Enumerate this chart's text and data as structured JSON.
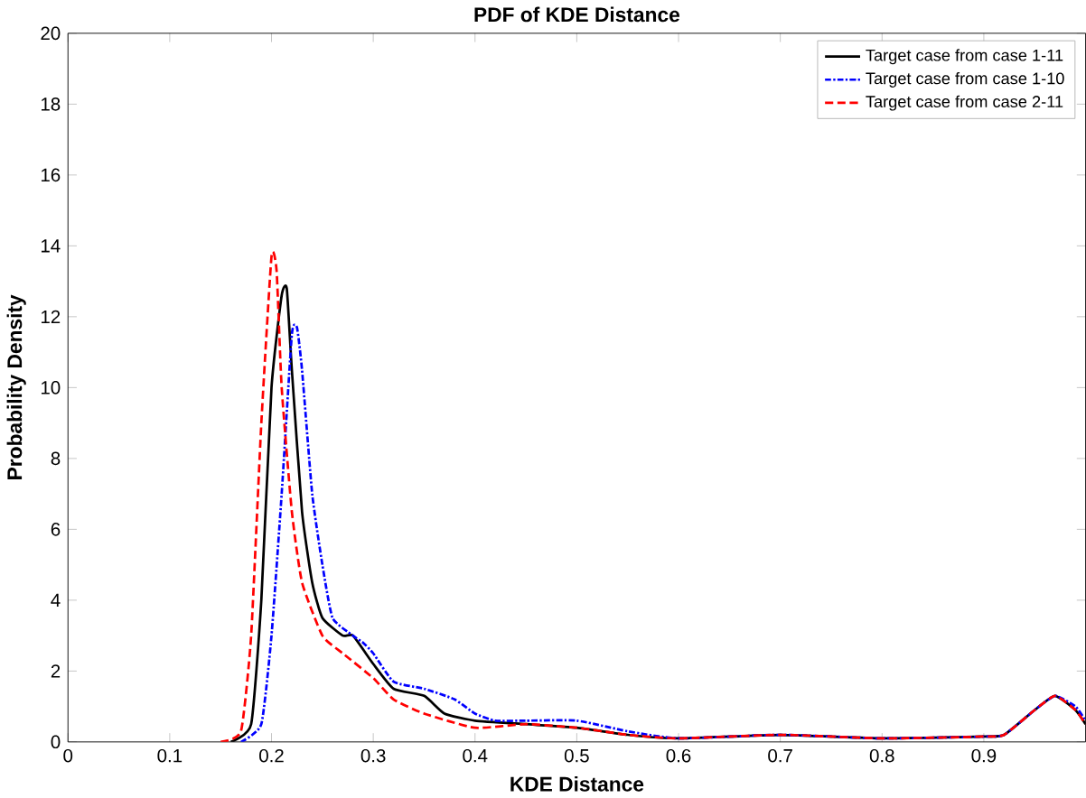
{
  "chart_data": {
    "type": "line",
    "title": "PDF of KDE Distance",
    "xlabel": "KDE Distance",
    "ylabel": "Probability Density",
    "xlim": [
      0,
      1
    ],
    "ylim": [
      0,
      20
    ],
    "xticks": [
      0,
      0.1,
      0.2,
      0.3,
      0.4,
      0.5,
      0.6,
      0.7,
      0.8,
      0.9
    ],
    "yticks": [
      0,
      2,
      4,
      6,
      8,
      10,
      12,
      14,
      16,
      18,
      20
    ],
    "legend": "top right",
    "grid": false,
    "marker": "none",
    "series": [
      {
        "name": "Target case from case 1-11",
        "color": "#000000",
        "line_style": "solid",
        "x": [
          0.16,
          0.18,
          0.19,
          0.2,
          0.21,
          0.215,
          0.22,
          0.23,
          0.24,
          0.25,
          0.27,
          0.28,
          0.3,
          0.32,
          0.35,
          0.37,
          0.4,
          0.45,
          0.5,
          0.55,
          0.6,
          0.7,
          0.8,
          0.9,
          0.92,
          0.95,
          0.97,
          0.99,
          1.0
        ],
        "values": [
          0,
          0.5,
          4,
          10,
          12.6,
          12.8,
          10.5,
          6.5,
          4.5,
          3.5,
          3,
          3,
          2.2,
          1.5,
          1.3,
          0.8,
          0.6,
          0.5,
          0.4,
          0.2,
          0.1,
          0.2,
          0.1,
          0.15,
          0.2,
          0.9,
          1.3,
          0.9,
          0.5
        ]
      },
      {
        "name": "Target case from case 1-10",
        "color": "#0000ff",
        "line_style": "dashdot",
        "x": [
          0.17,
          0.19,
          0.2,
          0.21,
          0.22,
          0.225,
          0.23,
          0.24,
          0.25,
          0.26,
          0.28,
          0.29,
          0.3,
          0.32,
          0.35,
          0.38,
          0.4,
          0.42,
          0.45,
          0.5,
          0.55,
          0.6,
          0.7,
          0.8,
          0.9,
          0.92,
          0.95,
          0.97,
          0.99,
          1.0
        ],
        "values": [
          0,
          0.5,
          3,
          7,
          11.5,
          11.7,
          10.5,
          7,
          5,
          3.5,
          3,
          2.8,
          2.5,
          1.7,
          1.5,
          1.2,
          0.8,
          0.6,
          0.6,
          0.6,
          0.3,
          0.1,
          0.2,
          0.1,
          0.15,
          0.2,
          0.9,
          1.3,
          1.0,
          0.6
        ]
      },
      {
        "name": "Target case from case 2-11",
        "color": "#ff0000",
        "line_style": "dashed",
        "x": [
          0.15,
          0.17,
          0.18,
          0.19,
          0.2,
          0.205,
          0.21,
          0.22,
          0.23,
          0.25,
          0.27,
          0.3,
          0.32,
          0.35,
          0.4,
          0.45,
          0.5,
          0.55,
          0.6,
          0.7,
          0.8,
          0.9,
          0.92,
          0.95,
          0.97,
          0.99,
          1.0
        ],
        "values": [
          0,
          0.3,
          3,
          9,
          13.7,
          13.3,
          10,
          6.5,
          4.5,
          3,
          2.5,
          1.8,
          1.2,
          0.8,
          0.4,
          0.5,
          0.4,
          0.2,
          0.1,
          0.2,
          0.1,
          0.15,
          0.2,
          0.9,
          1.3,
          0.9,
          0.5
        ]
      }
    ]
  }
}
